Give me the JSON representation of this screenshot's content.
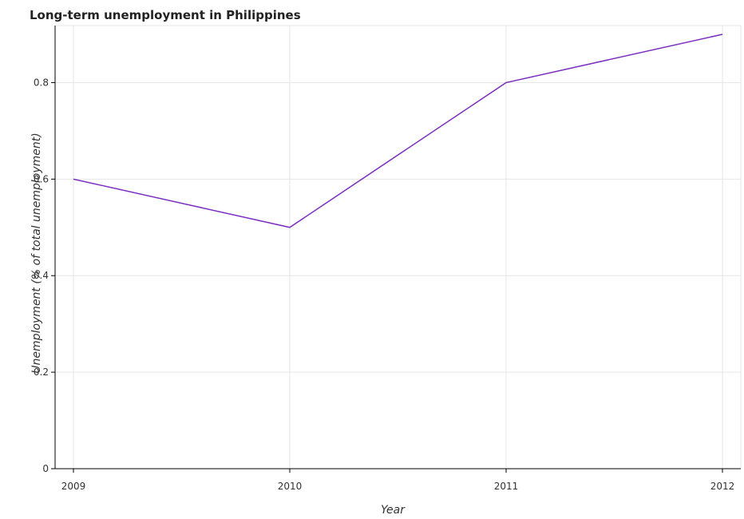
{
  "chart_data": {
    "type": "line",
    "title": "Long-term unemployment in Philippines",
    "xlabel": "Year",
    "ylabel": "Unemployment (% of total unemployment)",
    "categories": [
      "2009",
      "2010",
      "2011",
      "2012"
    ],
    "series": [
      {
        "values": [
          0.6,
          0.5,
          0.8,
          0.9
        ],
        "color": "#7b2fbf"
      }
    ],
    "ylim": [
      0,
      0.9
    ],
    "yticks": [
      0,
      0.2,
      0.4,
      0.6,
      0.8
    ],
    "ytick_labels": [
      "0",
      "0.2",
      "0.4",
      "0.6",
      "0.8"
    ],
    "grid": true,
    "legend": "none"
  }
}
